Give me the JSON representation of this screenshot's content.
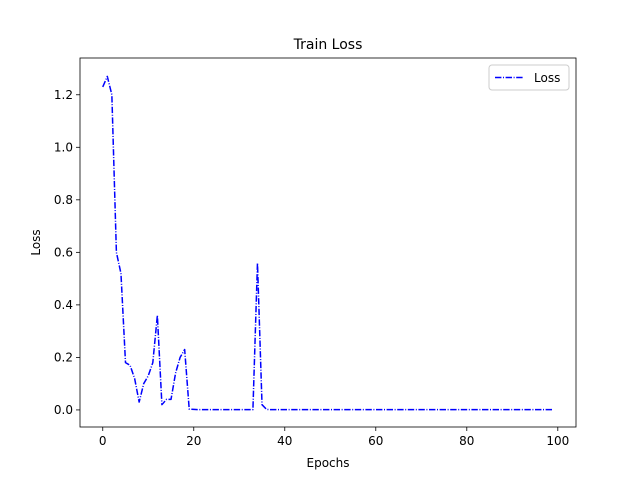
{
  "chart_data": {
    "type": "line",
    "title": "Train Loss",
    "xlabel": "Epochs",
    "ylabel": "Loss",
    "xlim": [
      -5,
      104
    ],
    "ylim": [
      -0.065,
      1.34
    ],
    "xticks": [
      0,
      20,
      40,
      60,
      80,
      100
    ],
    "yticks": [
      0.0,
      0.2,
      0.4,
      0.6,
      0.8,
      1.0,
      1.2
    ],
    "xtick_labels": [
      "0",
      "20",
      "40",
      "60",
      "80",
      "100"
    ],
    "ytick_labels": [
      "0.0",
      "0.2",
      "0.4",
      "0.6",
      "0.8",
      "1.0",
      "1.2"
    ],
    "legend_position": "top-right",
    "grid": false,
    "series": [
      {
        "name": "Loss",
        "color": "#0000ff",
        "linestyle": "dashdot",
        "x": [
          0,
          1,
          2,
          3,
          4,
          5,
          6,
          7,
          8,
          9,
          10,
          11,
          12,
          13,
          14,
          15,
          16,
          17,
          18,
          19,
          20,
          21,
          22,
          23,
          24,
          25,
          26,
          27,
          28,
          29,
          30,
          31,
          32,
          33,
          34,
          35,
          36,
          37,
          38,
          39,
          40,
          41,
          42,
          43,
          44,
          45,
          46,
          47,
          48,
          49,
          50,
          51,
          52,
          53,
          54,
          55,
          56,
          57,
          58,
          59,
          60,
          61,
          62,
          63,
          64,
          65,
          66,
          67,
          68,
          69,
          70,
          71,
          72,
          73,
          74,
          75,
          76,
          77,
          78,
          79,
          80,
          81,
          82,
          83,
          84,
          85,
          86,
          87,
          88,
          89,
          90,
          91,
          92,
          93,
          94,
          95,
          96,
          97,
          98,
          99
        ],
        "y": [
          1.23,
          1.27,
          1.2,
          0.6,
          0.52,
          0.18,
          0.17,
          0.12,
          0.03,
          0.1,
          0.13,
          0.18,
          0.36,
          0.02,
          0.04,
          0.04,
          0.14,
          0.2,
          0.23,
          0.003,
          0.002,
          0.001,
          0.001,
          0.001,
          0.001,
          0.001,
          0.001,
          0.001,
          0.001,
          0.001,
          0.001,
          0.001,
          0.001,
          0.001,
          0.56,
          0.02,
          0.002,
          0.001,
          0.001,
          0.001,
          0.001,
          0.001,
          0.001,
          0.001,
          0.001,
          0.001,
          0.001,
          0.001,
          0.001,
          0.001,
          0.001,
          0.001,
          0.001,
          0.001,
          0.001,
          0.001,
          0.001,
          0.001,
          0.001,
          0.001,
          0.001,
          0.001,
          0.001,
          0.001,
          0.001,
          0.001,
          0.001,
          0.001,
          0.001,
          0.001,
          0.001,
          0.001,
          0.001,
          0.001,
          0.001,
          0.001,
          0.001,
          0.001,
          0.001,
          0.001,
          0.001,
          0.001,
          0.001,
          0.001,
          0.001,
          0.001,
          0.001,
          0.001,
          0.001,
          0.001,
          0.001,
          0.001,
          0.001,
          0.001,
          0.001,
          0.001,
          0.001,
          0.001,
          0.001,
          0.001
        ]
      }
    ]
  }
}
